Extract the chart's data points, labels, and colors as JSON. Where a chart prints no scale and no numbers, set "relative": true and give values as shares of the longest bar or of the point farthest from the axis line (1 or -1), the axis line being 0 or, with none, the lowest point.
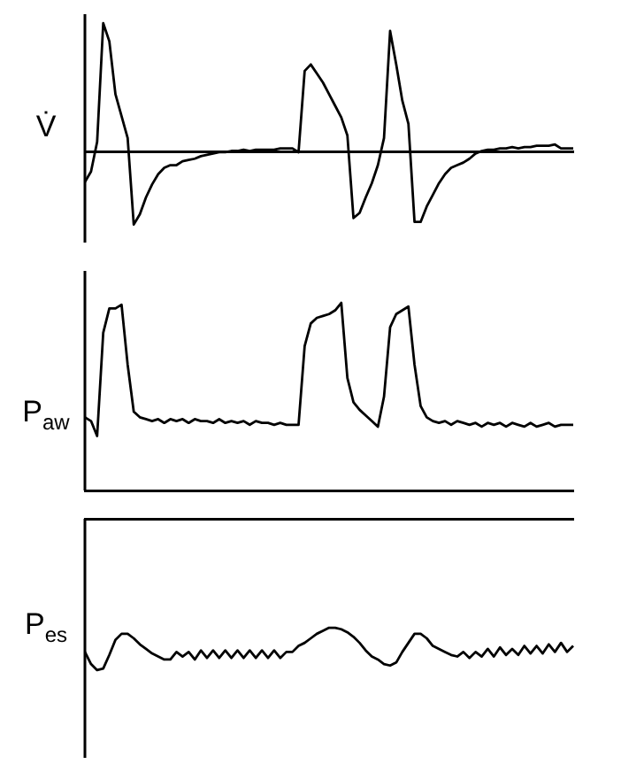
{
  "chart_data": [
    {
      "type": "line",
      "ylabel": "V̇",
      "color": "#000000",
      "relative": true,
      "categories": [
        null,
        null,
        null,
        null,
        null,
        null,
        null,
        null,
        null,
        null,
        null,
        null,
        null,
        null,
        null,
        null,
        null,
        null,
        null,
        null,
        null,
        null,
        null,
        null,
        null,
        null,
        null,
        null,
        null,
        null,
        null,
        null,
        null,
        null,
        null,
        null,
        null,
        null,
        null,
        null,
        null,
        null,
        null,
        null,
        null,
        null,
        null,
        null,
        null,
        null,
        null,
        null,
        null,
        null,
        null,
        null,
        null,
        null,
        null,
        null,
        null,
        null,
        null,
        null,
        null,
        null,
        null,
        null,
        null,
        null,
        null,
        null,
        null,
        null,
        null,
        null,
        null,
        null,
        null,
        null,
        null
      ],
      "values": [
        -0.23,
        -0.15,
        0.08,
        1,
        0.86,
        0.45,
        0.28,
        0.11,
        -0.56,
        -0.48,
        -0.35,
        -0.25,
        -0.17,
        -0.12,
        -0.1,
        -0.1,
        -0.07,
        -0.06,
        -0.05,
        -0.03,
        -0.02,
        -0.01,
        0,
        0,
        0.01,
        0.01,
        0.02,
        0.01,
        0.02,
        0.02,
        0.02,
        0.02,
        0.03,
        0.03,
        0.03,
        0,
        0.63,
        0.68,
        0.61,
        0.54,
        0.45,
        0.36,
        0.27,
        0.13,
        -0.51,
        -0.47,
        -0.35,
        -0.24,
        -0.1,
        0.11,
        0.94,
        0.68,
        0.4,
        0.22,
        -0.54,
        -0.54,
        -0.42,
        -0.33,
        -0.24,
        -0.17,
        -0.12,
        -0.1,
        -0.08,
        -0.05,
        -0.01,
        0.01,
        0.02,
        0.02,
        0.03,
        0.03,
        0.04,
        0.03,
        0.04,
        0.04,
        0.05,
        0.05,
        0.05,
        0.06,
        0.03,
        0.03,
        0.03
      ]
    },
    {
      "type": "line",
      "ylabel": "P$_{aw}$",
      "color": "#000000",
      "relative": true,
      "categories": [
        null,
        null,
        null,
        null,
        null,
        null,
        null,
        null,
        null,
        null,
        null,
        null,
        null,
        null,
        null,
        null,
        null,
        null,
        null,
        null,
        null,
        null,
        null,
        null,
        null,
        null,
        null,
        null,
        null,
        null,
        null,
        null,
        null,
        null,
        null,
        null,
        null,
        null,
        null,
        null,
        null,
        null,
        null,
        null,
        null,
        null,
        null,
        null,
        null,
        null,
        null,
        null,
        null,
        null,
        null,
        null,
        null,
        null,
        null,
        null,
        null,
        null,
        null,
        null,
        null,
        null,
        null,
        null,
        null,
        null,
        null,
        null,
        null,
        null,
        null,
        null,
        null,
        null,
        null,
        null,
        null
      ],
      "values": [
        0.39,
        0.37,
        0.29,
        0.84,
        0.97,
        0.97,
        0.99,
        0.67,
        0.42,
        0.39,
        0.38,
        0.37,
        0.38,
        0.36,
        0.38,
        0.37,
        0.38,
        0.36,
        0.38,
        0.37,
        0.37,
        0.36,
        0.38,
        0.36,
        0.37,
        0.36,
        0.37,
        0.35,
        0.37,
        0.36,
        0.36,
        0.35,
        0.36,
        0.35,
        0.35,
        0.35,
        0.77,
        0.89,
        0.92,
        0.93,
        0.94,
        0.96,
        1,
        0.6,
        0.47,
        0.43,
        0.4,
        0.37,
        0.34,
        0.5,
        0.87,
        0.94,
        0.96,
        0.98,
        0.67,
        0.45,
        0.39,
        0.37,
        0.36,
        0.37,
        0.35,
        0.37,
        0.36,
        0.35,
        0.36,
        0.34,
        0.36,
        0.35,
        0.36,
        0.34,
        0.36,
        0.35,
        0.34,
        0.36,
        0.34,
        0.35,
        0.36,
        0.34,
        0.35,
        0.35,
        0.35
      ]
    },
    {
      "type": "line",
      "ylabel": "P$_{es}$",
      "color": "#000000",
      "relative": true,
      "categories": [
        null,
        null,
        null,
        null,
        null,
        null,
        null,
        null,
        null,
        null,
        null,
        null,
        null,
        null,
        null,
        null,
        null,
        null,
        null,
        null,
        null,
        null,
        null,
        null,
        null,
        null,
        null,
        null,
        null,
        null,
        null,
        null,
        null,
        null,
        null,
        null,
        null,
        null,
        null,
        null,
        null,
        null,
        null,
        null,
        null,
        null,
        null,
        null,
        null,
        null,
        null,
        null,
        null,
        null,
        null,
        null,
        null,
        null,
        null,
        null,
        null,
        null,
        null,
        null,
        null,
        null,
        null,
        null,
        null,
        null,
        null,
        null,
        null,
        null,
        null,
        null,
        null,
        null,
        null,
        null,
        null
      ],
      "values": [
        -0.88,
        -0.96,
        -1,
        -0.99,
        -0.9,
        -0.8,
        -0.76,
        -0.76,
        -0.79,
        -0.83,
        -0.86,
        -0.89,
        -0.91,
        -0.93,
        -0.93,
        -0.88,
        -0.91,
        -0.88,
        -0.93,
        -0.87,
        -0.92,
        -0.87,
        -0.92,
        -0.87,
        -0.92,
        -0.87,
        -0.92,
        -0.87,
        -0.92,
        -0.87,
        -0.92,
        -0.87,
        -0.92,
        -0.88,
        -0.88,
        -0.84,
        -0.82,
        -0.79,
        -0.76,
        -0.74,
        -0.72,
        -0.72,
        -0.73,
        -0.75,
        -0.78,
        -0.82,
        -0.87,
        -0.91,
        -0.93,
        -0.96,
        -0.97,
        -0.95,
        -0.88,
        -0.82,
        -0.76,
        -0.76,
        -0.79,
        -0.84,
        -0.86,
        -0.88,
        -0.9,
        -0.91,
        -0.88,
        -0.92,
        -0.88,
        -0.91,
        -0.86,
        -0.91,
        -0.85,
        -0.9,
        -0.86,
        -0.9,
        -0.84,
        -0.89,
        -0.84,
        -0.89,
        -0.83,
        -0.88,
        -0.82,
        -0.88,
        -0.84
      ]
    }
  ]
}
